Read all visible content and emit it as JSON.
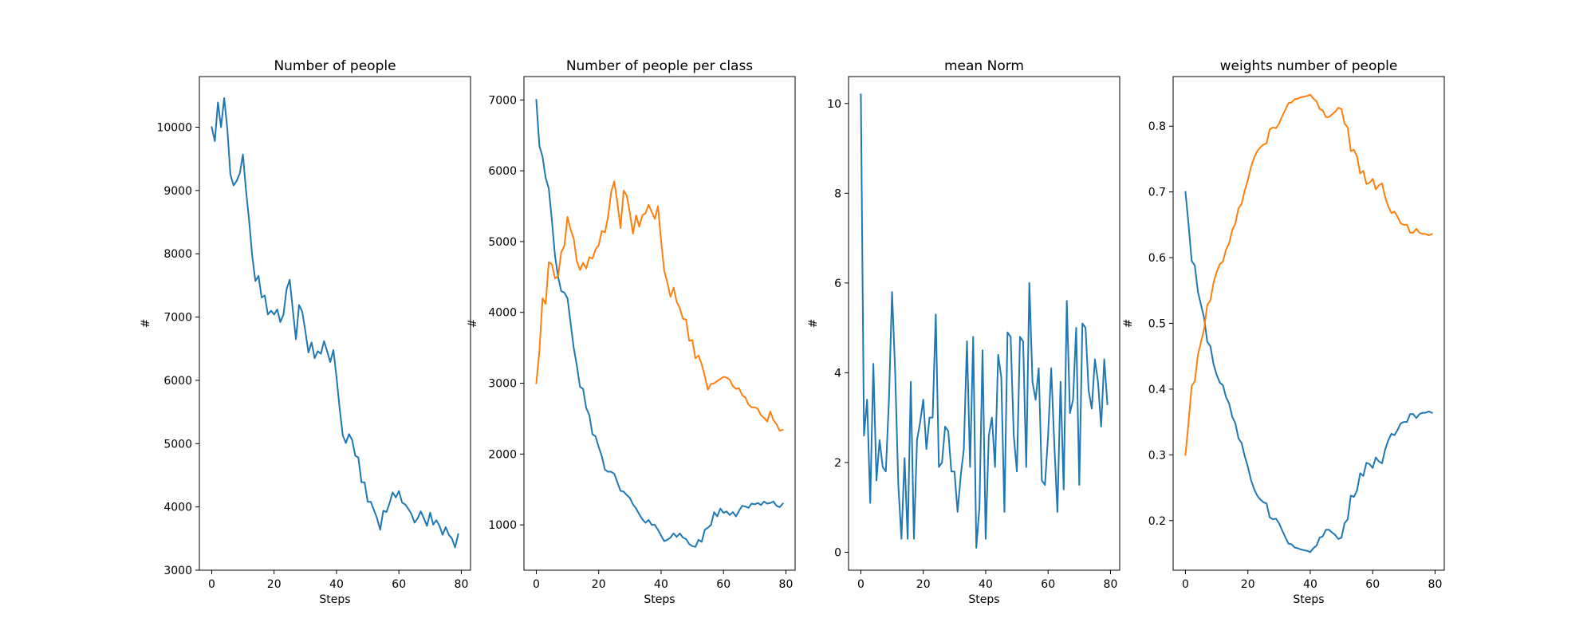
{
  "chart_data": [
    {
      "type": "line",
      "title": "Number of people",
      "xlabel": "Steps",
      "ylabel": "#",
      "xlim": [
        -3.95,
        82.95
      ],
      "ylim": [
        3000,
        10800
      ],
      "xticks": [
        0,
        20,
        40,
        60,
        80
      ],
      "yticks": [
        3000,
        4000,
        5000,
        6000,
        7000,
        8000,
        9000,
        10000
      ],
      "grid": false,
      "series": [
        {
          "color": "#1f77b4",
          "x": [
            0,
            1,
            2,
            3,
            4,
            5,
            6,
            7,
            8,
            9,
            10,
            11,
            12,
            13,
            14,
            15,
            16,
            17,
            18,
            19,
            20,
            21,
            22,
            23,
            24,
            25,
            26,
            27,
            28,
            29,
            30,
            31,
            32,
            33,
            34,
            35,
            36,
            37,
            38,
            39,
            40,
            41,
            42,
            43,
            44,
            45,
            46,
            47,
            48,
            49,
            50,
            51,
            52,
            53,
            54,
            55,
            56,
            57,
            58,
            59,
            60,
            61,
            62,
            63,
            64,
            65,
            66,
            67,
            68,
            69,
            70,
            71,
            72,
            73,
            74,
            75,
            76,
            77,
            78,
            79
          ],
          "y": [
            10000,
            9780,
            10390,
            10000,
            10460,
            9980,
            9250,
            9080,
            9150,
            9270,
            9570,
            9000,
            8520,
            7960,
            7570,
            7650,
            7310,
            7340,
            7040,
            7100,
            7040,
            7120,
            6920,
            7040,
            7440,
            7590,
            7110,
            6650,
            7190,
            7090,
            6780,
            6440,
            6600,
            6350,
            6460,
            6420,
            6620,
            6460,
            6290,
            6480,
            6050,
            5560,
            5130,
            5010,
            5150,
            5060,
            4810,
            4780,
            4390,
            4390,
            4080,
            4080,
            3950,
            3820,
            3640,
            3940,
            3920,
            4060,
            4230,
            4150,
            4250,
            4070,
            4040,
            3970,
            3890,
            3750,
            3820,
            3930,
            3820,
            3700,
            3910,
            3720,
            3790,
            3700,
            3560,
            3680,
            3560,
            3500,
            3360,
            3570
          ]
        }
      ]
    },
    {
      "type": "line",
      "title": "Number of people per class",
      "xlabel": "Steps",
      "ylabel": "#",
      "xlim": [
        -3.95,
        82.95
      ],
      "ylim": [
        360,
        7330
      ],
      "xticks": [
        0,
        20,
        40,
        60,
        80
      ],
      "yticks": [
        1000,
        2000,
        3000,
        4000,
        5000,
        6000,
        7000
      ],
      "grid": false,
      "series": [
        {
          "color": "#1f77b4",
          "x": [
            0,
            1,
            2,
            3,
            4,
            5,
            6,
            7,
            8,
            9,
            10,
            11,
            12,
            13,
            14,
            15,
            16,
            17,
            18,
            19,
            20,
            21,
            22,
            23,
            24,
            25,
            26,
            27,
            28,
            29,
            30,
            31,
            32,
            33,
            34,
            35,
            36,
            37,
            38,
            39,
            40,
            41,
            42,
            43,
            44,
            45,
            46,
            47,
            48,
            49,
            50,
            51,
            52,
            53,
            54,
            55,
            56,
            57,
            58,
            59,
            60,
            61,
            62,
            63,
            64,
            65,
            66,
            67,
            68,
            69,
            70,
            71,
            72,
            73,
            74,
            75,
            76,
            77,
            78,
            79
          ],
          "y": [
            7000,
            6350,
            6200,
            5900,
            5750,
            5300,
            4800,
            4500,
            4300,
            4280,
            4200,
            3850,
            3500,
            3250,
            2950,
            2920,
            2650,
            2550,
            2280,
            2250,
            2100,
            1970,
            1780,
            1750,
            1750,
            1720,
            1600,
            1480,
            1470,
            1420,
            1380,
            1290,
            1230,
            1150,
            1080,
            1030,
            1070,
            1000,
            1000,
            930,
            850,
            770,
            790,
            820,
            880,
            830,
            880,
            820,
            800,
            730,
            700,
            690,
            790,
            760,
            930,
            960,
            1000,
            1180,
            1120,
            1230,
            1170,
            1190,
            1140,
            1180,
            1120,
            1200,
            1270,
            1260,
            1240,
            1300,
            1290,
            1310,
            1280,
            1330,
            1300,
            1310,
            1330,
            1270,
            1250,
            1300
          ]
        },
        {
          "color": "#ff7f0e",
          "x": [
            0,
            1,
            2,
            3,
            4,
            5,
            6,
            7,
            8,
            9,
            10,
            11,
            12,
            13,
            14,
            15,
            16,
            17,
            18,
            19,
            20,
            21,
            22,
            23,
            24,
            25,
            26,
            27,
            28,
            29,
            30,
            31,
            32,
            33,
            34,
            35,
            36,
            37,
            38,
            39,
            40,
            41,
            42,
            43,
            44,
            45,
            46,
            47,
            48,
            49,
            50,
            51,
            52,
            53,
            54,
            55,
            56,
            57,
            58,
            59,
            60,
            61,
            62,
            63,
            64,
            65,
            66,
            67,
            68,
            69,
            70,
            71,
            72,
            73,
            74,
            75,
            76,
            77,
            78,
            79
          ],
          "y": [
            3000,
            3450,
            4200,
            4120,
            4710,
            4680,
            4480,
            4510,
            4850,
            4940,
            5350,
            5170,
            5040,
            4720,
            4600,
            4700,
            4620,
            4780,
            4760,
            4890,
            4950,
            5150,
            5130,
            5350,
            5700,
            5850,
            5550,
            5190,
            5720,
            5650,
            5400,
            5110,
            5370,
            5210,
            5370,
            5400,
            5520,
            5420,
            5320,
            5500,
            5010,
            4590,
            4420,
            4220,
            4350,
            4150,
            4060,
            3910,
            3900,
            3600,
            3610,
            3350,
            3390,
            3270,
            3100,
            2910,
            2990,
            3000,
            3030,
            3060,
            3090,
            3080,
            3050,
            2960,
            2920,
            2930,
            2830,
            2800,
            2700,
            2660,
            2660,
            2640,
            2550,
            2510,
            2460,
            2600,
            2480,
            2420,
            2330,
            2340
          ]
        }
      ]
    },
    {
      "type": "line",
      "title": "mean Norm",
      "xlabel": "Steps",
      "ylabel": "#",
      "xlim": [
        -3.95,
        82.95
      ],
      "ylim": [
        -0.4,
        10.6
      ],
      "xticks": [
        0,
        20,
        40,
        60,
        80
      ],
      "yticks": [
        0,
        2,
        4,
        6,
        8,
        10
      ],
      "grid": false,
      "series": [
        {
          "color": "#1f77b4",
          "x": [
            0,
            1,
            2,
            3,
            4,
            5,
            6,
            7,
            8,
            9,
            10,
            11,
            12,
            13,
            14,
            15,
            16,
            17,
            18,
            19,
            20,
            21,
            22,
            23,
            24,
            25,
            26,
            27,
            28,
            29,
            30,
            31,
            32,
            33,
            34,
            35,
            36,
            37,
            38,
            39,
            40,
            41,
            42,
            43,
            44,
            45,
            46,
            47,
            48,
            49,
            50,
            51,
            52,
            53,
            54,
            55,
            56,
            57,
            58,
            59,
            60,
            61,
            62,
            63,
            64,
            65,
            66,
            67,
            68,
            69,
            70,
            71,
            72,
            73,
            74,
            75,
            76,
            77,
            78,
            79
          ],
          "y": [
            10.2,
            2.6,
            3.4,
            1.1,
            4.2,
            1.6,
            2.5,
            1.9,
            1.8,
            3.4,
            5.8,
            4.0,
            1.5,
            0.3,
            2.1,
            0.3,
            3.8,
            0.3,
            2.5,
            2.9,
            3.4,
            2.3,
            3.0,
            3.0,
            5.3,
            1.9,
            2.0,
            2.8,
            2.7,
            1.8,
            1.8,
            0.9,
            1.7,
            2.3,
            4.7,
            1.9,
            4.8,
            0.1,
            1.0,
            4.5,
            0.3,
            2.6,
            3.0,
            1.9,
            4.4,
            3.9,
            0.9,
            4.9,
            4.8,
            2.6,
            1.8,
            4.8,
            4.7,
            1.9,
            6.0,
            3.8,
            3.4,
            4.1,
            1.6,
            1.5,
            2.6,
            4.1,
            2.4,
            0.9,
            3.8,
            1.4,
            5.6,
            3.1,
            3.4,
            5.0,
            1.5,
            5.1,
            5.0,
            3.6,
            3.2,
            4.3,
            3.8,
            2.8,
            4.3,
            3.3
          ]
        }
      ]
    },
    {
      "type": "line",
      "title": "weights number of people",
      "xlabel": "Steps",
      "ylabel": "#",
      "xlim": [
        -3.95,
        82.95
      ],
      "ylim": [
        0.1245,
        0.8755
      ],
      "xticks": [
        0,
        20,
        40,
        60,
        80
      ],
      "yticks": [
        0.2,
        0.3,
        0.4,
        0.5,
        0.6,
        0.7,
        0.8
      ],
      "grid": false,
      "series": [
        {
          "color": "#1f77b4",
          "x": [
            0,
            1,
            2,
            3,
            4,
            5,
            6,
            7,
            8,
            9,
            10,
            11,
            12,
            13,
            14,
            15,
            16,
            17,
            18,
            19,
            20,
            21,
            22,
            23,
            24,
            25,
            26,
            27,
            28,
            29,
            30,
            31,
            32,
            33,
            34,
            35,
            36,
            37,
            38,
            39,
            40,
            41,
            42,
            43,
            44,
            45,
            46,
            47,
            48,
            49,
            50,
            51,
            52,
            53,
            54,
            55,
            56,
            57,
            58,
            59,
            60,
            61,
            62,
            63,
            64,
            65,
            66,
            67,
            68,
            69,
            70,
            71,
            72,
            73,
            74,
            75,
            76,
            77,
            78,
            79
          ],
          "y": [
            0.7,
            0.65,
            0.595,
            0.588,
            0.548,
            0.528,
            0.508,
            0.472,
            0.465,
            0.438,
            0.422,
            0.41,
            0.406,
            0.388,
            0.378,
            0.358,
            0.348,
            0.325,
            0.318,
            0.298,
            0.282,
            0.262,
            0.248,
            0.238,
            0.232,
            0.228,
            0.226,
            0.205,
            0.202,
            0.203,
            0.196,
            0.185,
            0.175,
            0.165,
            0.164,
            0.159,
            0.158,
            0.156,
            0.155,
            0.154,
            0.152,
            0.158,
            0.162,
            0.174,
            0.176,
            0.186,
            0.186,
            0.182,
            0.178,
            0.172,
            0.174,
            0.196,
            0.202,
            0.238,
            0.236,
            0.246,
            0.272,
            0.268,
            0.288,
            0.286,
            0.28,
            0.296,
            0.29,
            0.287,
            0.308,
            0.322,
            0.332,
            0.33,
            0.338,
            0.348,
            0.35,
            0.35,
            0.362,
            0.362,
            0.356,
            0.362,
            0.364,
            0.364,
            0.366,
            0.364
          ]
        },
        {
          "color": "#ff7f0e",
          "x": [
            0,
            1,
            2,
            3,
            4,
            5,
            6,
            7,
            8,
            9,
            10,
            11,
            12,
            13,
            14,
            15,
            16,
            17,
            18,
            19,
            20,
            21,
            22,
            23,
            24,
            25,
            26,
            27,
            28,
            29,
            30,
            31,
            32,
            33,
            34,
            35,
            36,
            37,
            38,
            39,
            40,
            41,
            42,
            43,
            44,
            45,
            46,
            47,
            48,
            49,
            50,
            51,
            52,
            53,
            54,
            55,
            56,
            57,
            58,
            59,
            60,
            61,
            62,
            63,
            64,
            65,
            66,
            67,
            68,
            69,
            70,
            71,
            72,
            73,
            74,
            75,
            76,
            77,
            78,
            79
          ],
          "y": [
            0.3,
            0.35,
            0.405,
            0.412,
            0.452,
            0.472,
            0.492,
            0.528,
            0.535,
            0.562,
            0.578,
            0.59,
            0.594,
            0.612,
            0.622,
            0.642,
            0.652,
            0.675,
            0.682,
            0.702,
            0.718,
            0.738,
            0.752,
            0.762,
            0.768,
            0.772,
            0.774,
            0.795,
            0.798,
            0.797,
            0.804,
            0.815,
            0.825,
            0.835,
            0.836,
            0.841,
            0.842,
            0.844,
            0.845,
            0.846,
            0.848,
            0.842,
            0.838,
            0.826,
            0.824,
            0.814,
            0.814,
            0.818,
            0.822,
            0.828,
            0.826,
            0.804,
            0.798,
            0.762,
            0.764,
            0.754,
            0.728,
            0.732,
            0.712,
            0.714,
            0.72,
            0.704,
            0.71,
            0.713,
            0.692,
            0.678,
            0.668,
            0.67,
            0.662,
            0.652,
            0.65,
            0.65,
            0.638,
            0.638,
            0.644,
            0.638,
            0.636,
            0.636,
            0.634,
            0.636
          ]
        }
      ]
    }
  ]
}
